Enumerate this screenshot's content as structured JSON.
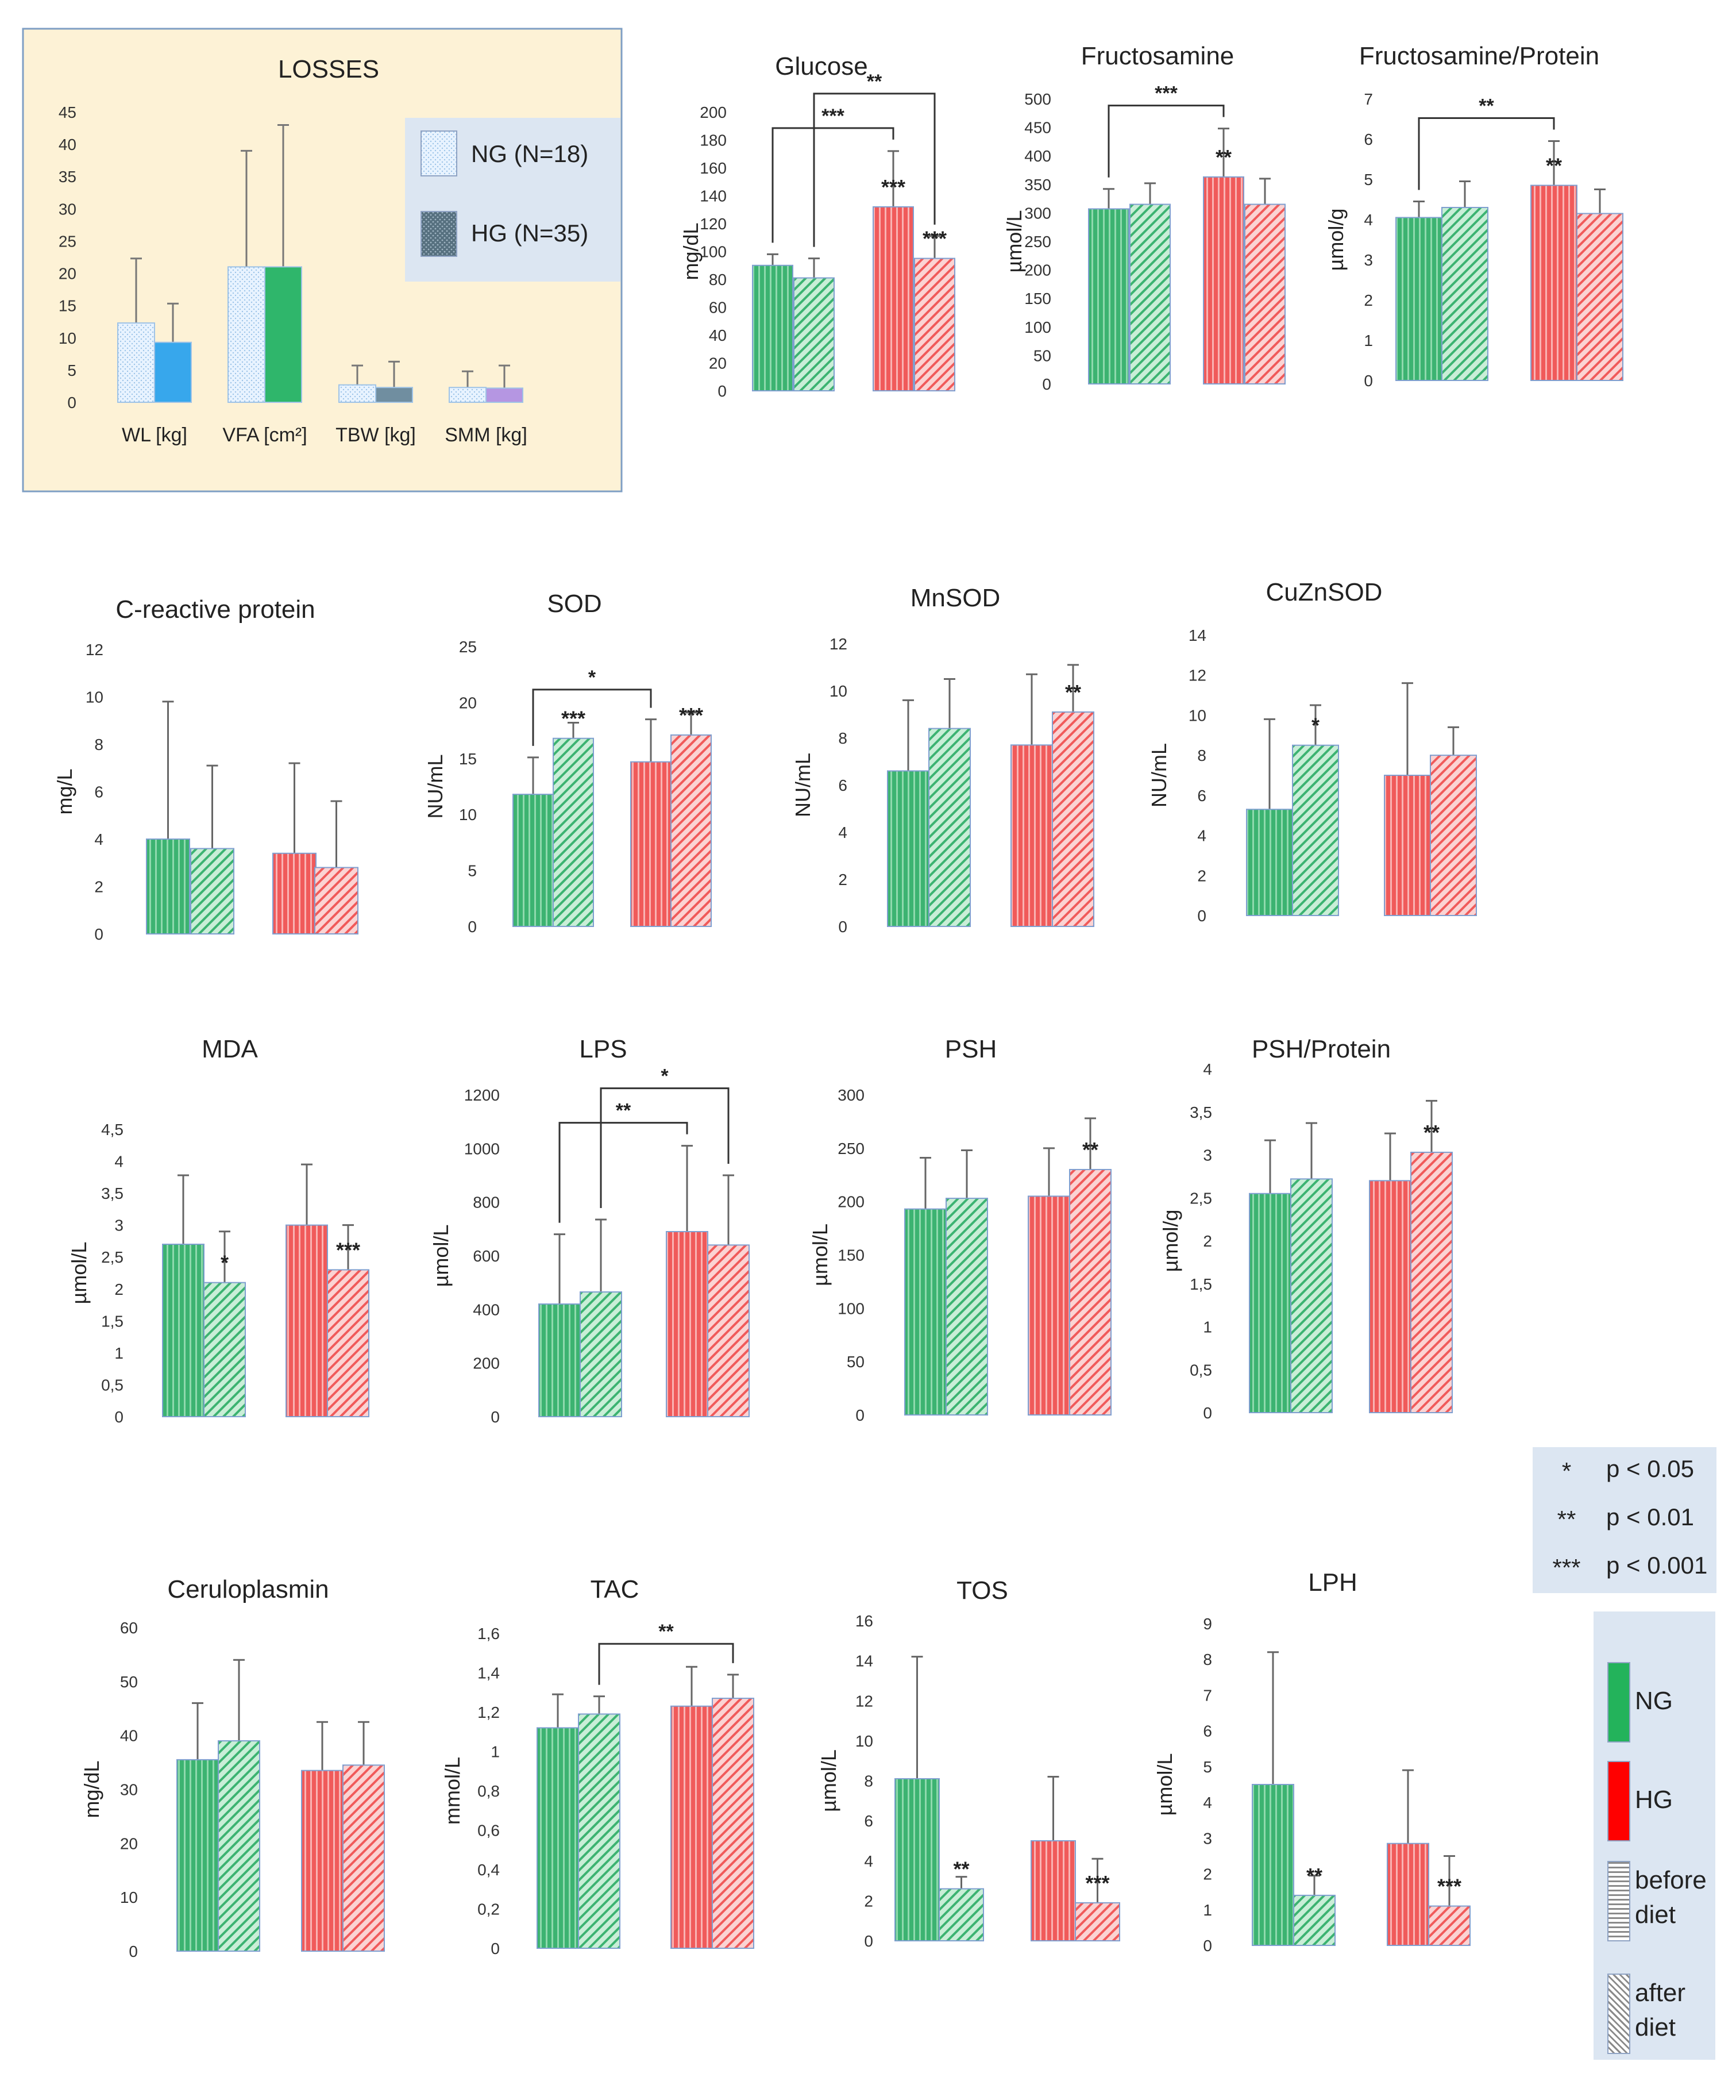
{
  "colors": {
    "ng": "#3cb371",
    "ng_light": "#9cdbb4",
    "hg": "#f05a5a",
    "hg_light": "#f7a8a8",
    "bar_stroke": "#7f9fd0",
    "losses_bg": "#fdf2d6",
    "losses_border": "#7f9fc4",
    "legend_bg": "#dce6f2"
  },
  "significance_legend": [
    {
      "stars": "*",
      "label": "p < 0.05"
    },
    {
      "stars": "**",
      "label": "p < 0.01"
    },
    {
      "stars": "***",
      "label": "p < 0.001"
    }
  ],
  "group_legend": [
    {
      "id": "ng",
      "label": "NG"
    },
    {
      "id": "hg",
      "label": "HG"
    },
    {
      "id": "before",
      "label": "before diet"
    },
    {
      "id": "after",
      "label": "after diet"
    }
  ],
  "chart_data": [
    {
      "type": "bar",
      "title": "LOSSES",
      "categories": [
        "WL [kg]",
        "VFA [cm²]",
        "TBW [kg]",
        "SMM [kg]"
      ],
      "series": [
        {
          "name": "NG (N=18)",
          "values": [
            12.3,
            21,
            2.7,
            2.3
          ],
          "errors": [
            10,
            18,
            3,
            2.5
          ]
        },
        {
          "name": "HG (N=35)",
          "values": [
            9.3,
            21,
            2.3,
            2.2
          ],
          "errors": [
            6,
            22,
            4,
            3.5
          ]
        }
      ],
      "yticks": [
        "0",
        "5",
        "10",
        "15",
        "20",
        "25",
        "30",
        "35",
        "40",
        "45"
      ],
      "ylim": [
        0,
        45
      ],
      "legend": [
        "NG (N=18)",
        "HG (N=35)"
      ]
    },
    {
      "type": "bar",
      "title": "Glucose",
      "ylabel": "mg/dL",
      "ylim": [
        0,
        200
      ],
      "yticks": [
        "0",
        "20",
        "40",
        "60",
        "80",
        "100",
        "120",
        "140",
        "160",
        "180",
        "200"
      ],
      "groups": [
        "NG",
        "HG"
      ],
      "phases": [
        "before diet",
        "after diet"
      ],
      "values": [
        90,
        81,
        132,
        95
      ],
      "errors": [
        8,
        14,
        40,
        16
      ],
      "within_stars": [
        "",
        "",
        "***",
        "***"
      ],
      "brackets": [
        {
          "from": 0,
          "to": 2,
          "label": "***"
        },
        {
          "from": 1,
          "to": 3,
          "label": "**"
        }
      ]
    },
    {
      "type": "bar",
      "title": "Fructosamine",
      "ylabel": "µmol/L",
      "ylim": [
        0,
        500
      ],
      "yticks": [
        "0",
        "50",
        "100",
        "150",
        "200",
        "250",
        "300",
        "350",
        "400",
        "450",
        "500"
      ],
      "groups": [
        "NG",
        "HG"
      ],
      "phases": [
        "before diet",
        "after diet"
      ],
      "values": [
        307,
        315,
        363,
        315
      ],
      "errors": [
        35,
        37,
        85,
        45
      ],
      "within_stars": [
        "",
        "",
        "**",
        ""
      ],
      "brackets": [
        {
          "from": 0,
          "to": 2,
          "label": "***"
        }
      ]
    },
    {
      "type": "bar",
      "title": "Fructosamine/Protein",
      "ylabel": "µmol/g",
      "ylim": [
        0,
        7
      ],
      "yticks": [
        "0",
        "1",
        "2",
        "3",
        "4",
        "5",
        "6",
        "7"
      ],
      "groups": [
        "NG",
        "HG"
      ],
      "phases": [
        "before diet",
        "after diet"
      ],
      "values": [
        4.05,
        4.3,
        4.85,
        4.15
      ],
      "errors": [
        0.4,
        0.65,
        1.1,
        0.6
      ],
      "within_stars": [
        "",
        "",
        "**",
        ""
      ],
      "brackets": [
        {
          "from": 0,
          "to": 2,
          "label": "**"
        }
      ]
    },
    {
      "type": "bar",
      "title": "C-reactive  protein",
      "ylabel": "mg/L",
      "ylim": [
        0,
        12
      ],
      "yticks": [
        "0",
        "2",
        "4",
        "6",
        "8",
        "10",
        "12"
      ],
      "groups": [
        "NG",
        "HG"
      ],
      "phases": [
        "before diet",
        "after diet"
      ],
      "values": [
        4.0,
        3.6,
        3.4,
        2.8
      ],
      "errors": [
        5.8,
        3.5,
        3.8,
        2.8
      ],
      "within_stars": [
        "",
        "",
        "",
        ""
      ],
      "brackets": []
    },
    {
      "type": "bar",
      "title": "SOD",
      "ylabel": "NU/mL",
      "ylim": [
        0,
        25
      ],
      "yticks": [
        "0",
        "5",
        "10",
        "15",
        "20",
        "25"
      ],
      "groups": [
        "NG",
        "HG"
      ],
      "phases": [
        "before diet",
        "after diet"
      ],
      "values": [
        11.8,
        16.8,
        14.7,
        17.1
      ],
      "errors": [
        3.3,
        1.4,
        3.8,
        2.0
      ],
      "within_stars": [
        "",
        "***",
        "",
        "***"
      ],
      "brackets": [
        {
          "from": 0,
          "to": 2,
          "label": "*"
        }
      ]
    },
    {
      "type": "bar",
      "title": "MnSOD",
      "ylabel": "NU/mL",
      "ylim": [
        0,
        12
      ],
      "yticks": [
        "0",
        "2",
        "4",
        "6",
        "8",
        "10",
        "12"
      ],
      "groups": [
        "NG",
        "HG"
      ],
      "phases": [
        "before diet",
        "after diet"
      ],
      "values": [
        6.6,
        8.4,
        7.7,
        9.1
      ],
      "errors": [
        3.0,
        2.1,
        3.0,
        2.0
      ],
      "within_stars": [
        "",
        "",
        "",
        "**"
      ],
      "brackets": []
    },
    {
      "type": "bar",
      "title": "CuZnSOD",
      "ylabel": "NU/mL",
      "ylim": [
        0,
        14
      ],
      "yticks": [
        "0",
        "2",
        "4",
        "6",
        "8",
        "10",
        "12",
        "14"
      ],
      "groups": [
        "NG",
        "HG"
      ],
      "phases": [
        "before diet",
        "after diet"
      ],
      "values": [
        5.3,
        8.5,
        7.0,
        8.0
      ],
      "errors": [
        4.5,
        2.0,
        4.6,
        1.4
      ],
      "within_stars": [
        "",
        "*",
        "",
        ""
      ],
      "brackets": []
    },
    {
      "type": "bar",
      "title": "MDA",
      "ylabel": "µmol/L",
      "ylim": [
        0,
        4.5
      ],
      "yticks": [
        "0",
        "0,5",
        "1",
        "1,5",
        "2",
        "2,5",
        "3",
        "3,5",
        "4",
        "4,5"
      ],
      "groups": [
        "NG",
        "HG"
      ],
      "phases": [
        "before diet",
        "after diet"
      ],
      "values": [
        2.7,
        2.1,
        3.0,
        2.3
      ],
      "errors": [
        1.08,
        0.8,
        0.95,
        0.7
      ],
      "within_stars": [
        "",
        "*",
        "",
        "***"
      ],
      "brackets": []
    },
    {
      "type": "bar",
      "title": "LPS",
      "ylabel": "µmol/L",
      "ylim": [
        0,
        1200
      ],
      "yticks": [
        "0",
        "200",
        "400",
        "600",
        "800",
        "1000",
        "1200"
      ],
      "groups": [
        "NG",
        "HG"
      ],
      "phases": [
        "before diet",
        "after diet"
      ],
      "values": [
        420,
        465,
        690,
        640
      ],
      "errors": [
        260,
        270,
        320,
        260
      ],
      "within_stars": [
        "",
        "",
        "",
        ""
      ],
      "brackets": [
        {
          "from": 0,
          "to": 2,
          "label": "**"
        },
        {
          "from": 1,
          "to": 3,
          "label": "*"
        }
      ]
    },
    {
      "type": "bar",
      "title": "PSH",
      "ylabel": "µmol/L",
      "ylim": [
        0,
        300
      ],
      "yticks": [
        "0",
        "50",
        "100",
        "150",
        "200",
        "250",
        "300"
      ],
      "groups": [
        "NG",
        "HG"
      ],
      "phases": [
        "before diet",
        "after diet"
      ],
      "values": [
        193,
        203,
        205,
        230
      ],
      "errors": [
        48,
        45,
        45,
        48
      ],
      "within_stars": [
        "",
        "",
        "",
        "**"
      ],
      "brackets": []
    },
    {
      "type": "bar",
      "title": "PSH/Protein",
      "ylabel": "µmol/g",
      "ylim": [
        0,
        4
      ],
      "yticks": [
        "0",
        "0,5",
        "1",
        "1,5",
        "2",
        "2,5",
        "3",
        "3,5",
        "4"
      ],
      "groups": [
        "NG",
        "HG"
      ],
      "phases": [
        "before diet",
        "after diet"
      ],
      "values": [
        2.55,
        2.72,
        2.7,
        3.03
      ],
      "errors": [
        0.62,
        0.65,
        0.55,
        0.6
      ],
      "within_stars": [
        "",
        "",
        "",
        "**"
      ],
      "brackets": []
    },
    {
      "type": "bar",
      "title": "Ceruloplasmin",
      "ylabel": "mg/dL",
      "ylim": [
        0,
        60
      ],
      "yticks": [
        "0",
        "10",
        "20",
        "30",
        "40",
        "50",
        "60"
      ],
      "groups": [
        "NG",
        "HG"
      ],
      "phases": [
        "before diet",
        "after diet"
      ],
      "values": [
        35.5,
        39,
        33.5,
        34.5
      ],
      "errors": [
        10.5,
        15,
        9,
        8
      ],
      "within_stars": [
        "",
        "",
        "",
        ""
      ],
      "brackets": []
    },
    {
      "type": "bar",
      "title": "TAC",
      "ylabel": "mmol/L",
      "ylim": [
        0,
        1.6
      ],
      "yticks": [
        "0",
        "0,2",
        "0,4",
        "0,6",
        "0,8",
        "1",
        "1,2",
        "1,4",
        "1,6"
      ],
      "groups": [
        "NG",
        "HG"
      ],
      "phases": [
        "before diet",
        "after diet"
      ],
      "values": [
        1.12,
        1.19,
        1.23,
        1.27
      ],
      "errors": [
        0.17,
        0.09,
        0.2,
        0.12
      ],
      "within_stars": [
        "",
        "",
        "",
        ""
      ],
      "brackets": [
        {
          "from": 1,
          "to": 3,
          "label": "**"
        }
      ]
    },
    {
      "type": "bar",
      "title": "TOS",
      "ylabel": "µmol/L",
      "ylim": [
        0,
        16
      ],
      "yticks": [
        "0",
        "2",
        "4",
        "6",
        "8",
        "10",
        "12",
        "14",
        "16"
      ],
      "groups": [
        "NG",
        "HG"
      ],
      "phases": [
        "before diet",
        "after diet"
      ],
      "values": [
        8.1,
        2.6,
        5.0,
        1.9
      ],
      "errors": [
        6.1,
        0.6,
        3.2,
        2.2
      ],
      "within_stars": [
        "",
        "**",
        "",
        "***"
      ],
      "brackets": []
    },
    {
      "type": "bar",
      "title": "LPH",
      "ylabel": "µmol/L",
      "ylim": [
        0,
        9
      ],
      "yticks": [
        "0",
        "1",
        "2",
        "3",
        "4",
        "5",
        "6",
        "7",
        "8",
        "9"
      ],
      "groups": [
        "NG",
        "HG"
      ],
      "phases": [
        "before diet",
        "after diet"
      ],
      "values": [
        4.5,
        1.4,
        2.85,
        1.1
      ],
      "errors": [
        3.7,
        0.55,
        2.05,
        1.4
      ],
      "within_stars": [
        "",
        "**",
        "",
        "***"
      ],
      "brackets": []
    }
  ]
}
